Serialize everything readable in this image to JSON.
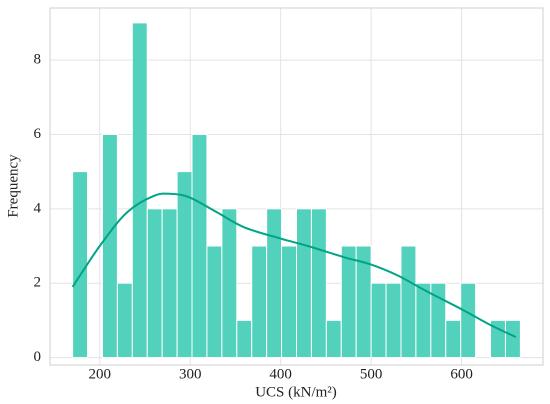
{
  "chart_data": {
    "type": "histogram",
    "xlabel": "UCS (kN/m²)",
    "ylabel": "Frequency",
    "bins": [
      170,
      186.5,
      203,
      219.5,
      236,
      252.5,
      269,
      285.5,
      302,
      318.5,
      335,
      351.5,
      368,
      384.5,
      401,
      417.5,
      434,
      450.5,
      467,
      483.5,
      500,
      516.5,
      533,
      549.5,
      566,
      582.5,
      599,
      615.5,
      632,
      648.5,
      665
    ],
    "counts": [
      5,
      0,
      6,
      2,
      9,
      4,
      4,
      5,
      6,
      3,
      4,
      1,
      3,
      4,
      3,
      4,
      4,
      1,
      3,
      3,
      2,
      2,
      3,
      2,
      2,
      1,
      2,
      0,
      1,
      1
    ],
    "color": "#52d1bc",
    "kde": {
      "color": "#00a486",
      "x": [
        170,
        200,
        230,
        260,
        280,
        300,
        330,
        360,
        400,
        430,
        470,
        500,
        530,
        560,
        600,
        630,
        660
      ],
      "y": [
        1.9,
        3.0,
        3.9,
        4.35,
        4.4,
        4.3,
        3.9,
        3.5,
        3.2,
        3.0,
        2.7,
        2.5,
        2.2,
        1.8,
        1.3,
        0.9,
        0.55
      ]
    },
    "xlim": [
      145,
      690
    ],
    "ylim": [
      -0.2,
      9.4
    ],
    "xticks": [
      200,
      300,
      400,
      500,
      600
    ],
    "yticks": [
      0,
      2,
      4,
      6,
      8
    ],
    "grid": true
  }
}
